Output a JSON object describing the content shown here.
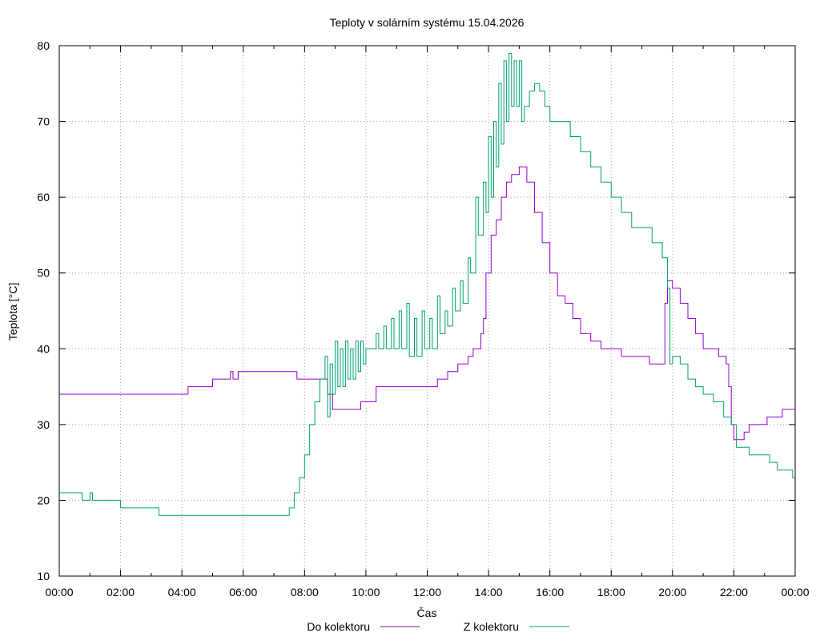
{
  "chart_data": {
    "type": "line",
    "title": "Teploty v solárním systému 15.04.2026",
    "xlabel": "Čas",
    "ylabel": "Teplota [°C]",
    "ylim": [
      10,
      80
    ],
    "xlim_hours": [
      0,
      24
    ],
    "x_ticks": [
      "00:00",
      "02:00",
      "04:00",
      "06:00",
      "08:00",
      "10:00",
      "12:00",
      "14:00",
      "16:00",
      "18:00",
      "20:00",
      "22:00",
      "00:00"
    ],
    "y_ticks": [
      "10",
      "20",
      "30",
      "40",
      "50",
      "60",
      "70",
      "80"
    ],
    "grid": true,
    "legend_position": "bottom",
    "series": [
      {
        "name": "Do kolektoru",
        "color": "#9400d3",
        "points": [
          [
            "00:00",
            34
          ],
          [
            "04:12",
            34
          ],
          [
            "04:12",
            35
          ],
          [
            "05:00",
            35
          ],
          [
            "05:00",
            36
          ],
          [
            "05:30",
            36
          ],
          [
            "05:35",
            37
          ],
          [
            "05:40",
            36
          ],
          [
            "05:50",
            37
          ],
          [
            "06:00",
            37
          ],
          [
            "07:40",
            37
          ],
          [
            "07:45",
            36
          ],
          [
            "08:30",
            36
          ],
          [
            "08:45",
            34
          ],
          [
            "08:55",
            32
          ],
          [
            "09:50",
            32
          ],
          [
            "09:50",
            33
          ],
          [
            "10:10",
            33
          ],
          [
            "10:20",
            34
          ],
          [
            "10:20",
            35
          ],
          [
            "12:15",
            35
          ],
          [
            "12:20",
            36
          ],
          [
            "12:40",
            37
          ],
          [
            "13:00",
            38
          ],
          [
            "13:20",
            39
          ],
          [
            "13:30",
            40
          ],
          [
            "13:45",
            42
          ],
          [
            "13:50",
            44
          ],
          [
            "13:55",
            50
          ],
          [
            "14:05",
            55
          ],
          [
            "14:15",
            57
          ],
          [
            "14:25",
            60
          ],
          [
            "14:35",
            62
          ],
          [
            "14:45",
            63
          ],
          [
            "15:00",
            64
          ],
          [
            "15:15",
            62
          ],
          [
            "15:30",
            58
          ],
          [
            "15:45",
            54
          ],
          [
            "16:00",
            50
          ],
          [
            "16:15",
            47
          ],
          [
            "16:30",
            46
          ],
          [
            "16:45",
            44
          ],
          [
            "17:00",
            42
          ],
          [
            "17:20",
            41
          ],
          [
            "17:40",
            40
          ],
          [
            "18:20",
            40
          ],
          [
            "18:20",
            39
          ],
          [
            "19:10",
            39
          ],
          [
            "19:15",
            38
          ],
          [
            "19:35",
            38
          ],
          [
            "19:45",
            46
          ],
          [
            "19:50",
            49
          ],
          [
            "20:00",
            48
          ],
          [
            "20:15",
            46
          ],
          [
            "20:30",
            44
          ],
          [
            "20:45",
            42
          ],
          [
            "21:00",
            40
          ],
          [
            "21:25",
            40
          ],
          [
            "21:30",
            39
          ],
          [
            "21:45",
            38
          ],
          [
            "21:50",
            35
          ],
          [
            "21:55",
            30
          ],
          [
            "22:00",
            28
          ],
          [
            "22:10",
            28
          ],
          [
            "22:20",
            29
          ],
          [
            "22:30",
            30
          ],
          [
            "23:00",
            30
          ],
          [
            "23:05",
            31
          ],
          [
            "23:30",
            31
          ],
          [
            "23:35",
            32
          ],
          [
            "24:00",
            32
          ]
        ]
      },
      {
        "name": "Z kolektoru",
        "color": "#009e73",
        "points": [
          [
            "00:00",
            21
          ],
          [
            "00:40",
            21
          ],
          [
            "00:45",
            20
          ],
          [
            "01:00",
            20
          ],
          [
            "01:00",
            21
          ],
          [
            "01:05",
            20
          ],
          [
            "02:00",
            20
          ],
          [
            "02:00",
            19
          ],
          [
            "03:15",
            19
          ],
          [
            "03:15",
            18
          ],
          [
            "07:25",
            18
          ],
          [
            "07:30",
            19
          ],
          [
            "07:40",
            21
          ],
          [
            "07:50",
            23
          ],
          [
            "08:00",
            26
          ],
          [
            "08:10",
            30
          ],
          [
            "08:20",
            33
          ],
          [
            "08:30",
            36
          ],
          [
            "08:40",
            39
          ],
          [
            "08:45",
            31
          ],
          [
            "08:50",
            38
          ],
          [
            "08:55",
            34
          ],
          [
            "09:00",
            41
          ],
          [
            "09:05",
            35
          ],
          [
            "09:10",
            40
          ],
          [
            "09:15",
            35
          ],
          [
            "09:20",
            41
          ],
          [
            "09:25",
            36
          ],
          [
            "09:30",
            40
          ],
          [
            "09:35",
            36
          ],
          [
            "09:40",
            41
          ],
          [
            "09:45",
            37
          ],
          [
            "09:50",
            41
          ],
          [
            "09:55",
            38
          ],
          [
            "10:00",
            40
          ],
          [
            "10:10",
            40
          ],
          [
            "10:20",
            42
          ],
          [
            "10:25",
            40
          ],
          [
            "10:35",
            43
          ],
          [
            "10:40",
            40
          ],
          [
            "10:50",
            44
          ],
          [
            "10:55",
            40
          ],
          [
            "11:05",
            45
          ],
          [
            "11:10",
            40
          ],
          [
            "11:20",
            46
          ],
          [
            "11:25",
            39
          ],
          [
            "11:35",
            44
          ],
          [
            "11:40",
            39
          ],
          [
            "11:50",
            45
          ],
          [
            "11:55",
            40
          ],
          [
            "12:05",
            44
          ],
          [
            "12:10",
            40
          ],
          [
            "12:20",
            47
          ],
          [
            "12:25",
            42
          ],
          [
            "12:35",
            45
          ],
          [
            "12:40",
            43
          ],
          [
            "12:50",
            48
          ],
          [
            "12:55",
            45
          ],
          [
            "13:05",
            49
          ],
          [
            "13:10",
            46
          ],
          [
            "13:20",
            52
          ],
          [
            "13:25",
            50
          ],
          [
            "13:35",
            60
          ],
          [
            "13:40",
            55
          ],
          [
            "13:50",
            62
          ],
          [
            "13:55",
            58
          ],
          [
            "14:00",
            68
          ],
          [
            "14:05",
            60
          ],
          [
            "14:10",
            70
          ],
          [
            "14:15",
            64
          ],
          [
            "14:20",
            75
          ],
          [
            "14:25",
            67
          ],
          [
            "14:30",
            78
          ],
          [
            "14:35",
            70
          ],
          [
            "14:40",
            79
          ],
          [
            "14:45",
            72
          ],
          [
            "14:50",
            78
          ],
          [
            "14:55",
            72
          ],
          [
            "15:00",
            78
          ],
          [
            "15:05",
            70
          ],
          [
            "15:10",
            72
          ],
          [
            "15:20",
            74
          ],
          [
            "15:30",
            75
          ],
          [
            "15:40",
            74
          ],
          [
            "15:50",
            72
          ],
          [
            "16:00",
            70
          ],
          [
            "16:20",
            70
          ],
          [
            "16:40",
            68
          ],
          [
            "17:00",
            66
          ],
          [
            "17:20",
            64
          ],
          [
            "17:40",
            62
          ],
          [
            "18:00",
            60
          ],
          [
            "18:20",
            58
          ],
          [
            "18:40",
            56
          ],
          [
            "19:00",
            56
          ],
          [
            "19:20",
            54
          ],
          [
            "19:40",
            52
          ],
          [
            "19:50",
            48
          ],
          [
            "19:55",
            38
          ],
          [
            "20:00",
            39
          ],
          [
            "20:15",
            38
          ],
          [
            "20:30",
            36
          ],
          [
            "20:45",
            35
          ],
          [
            "21:00",
            34
          ],
          [
            "21:20",
            33
          ],
          [
            "21:40",
            31
          ],
          [
            "21:55",
            30
          ],
          [
            "22:05",
            27
          ],
          [
            "22:30",
            27
          ],
          [
            "22:30",
            26
          ],
          [
            "23:00",
            26
          ],
          [
            "23:10",
            25
          ],
          [
            "23:25",
            24
          ],
          [
            "23:50",
            24
          ],
          [
            "23:55",
            23
          ],
          [
            "24:00",
            23
          ]
        ]
      }
    ]
  }
}
